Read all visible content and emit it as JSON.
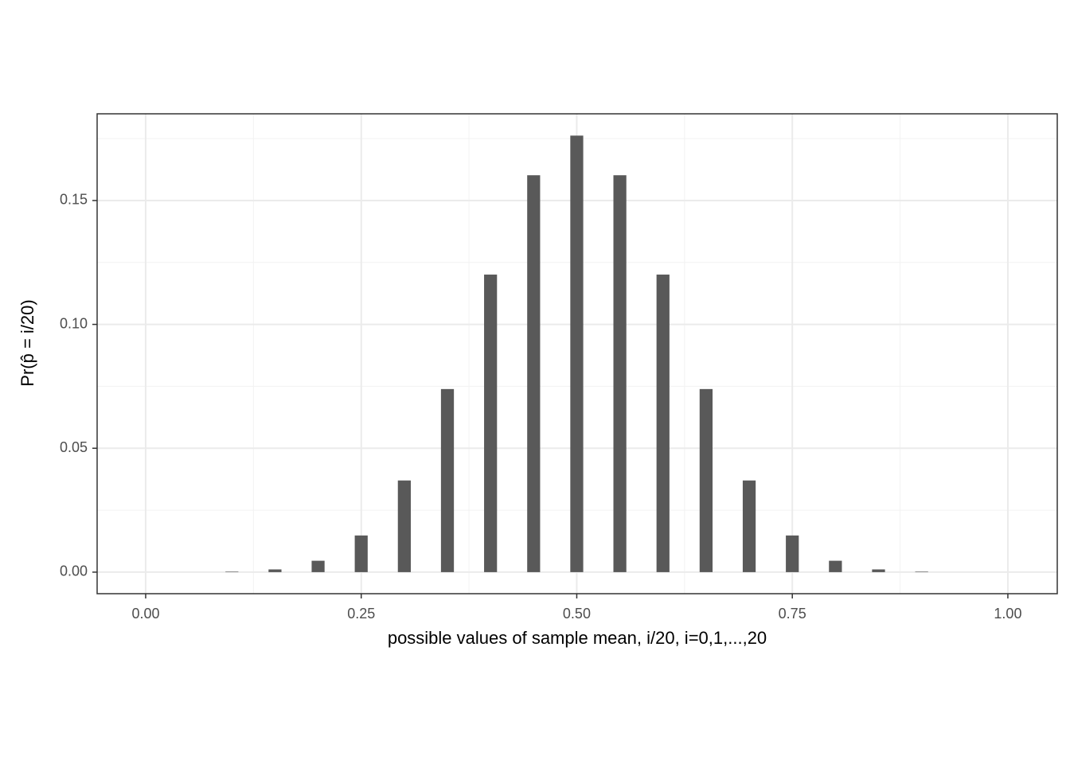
{
  "chart_data": {
    "type": "bar",
    "x_label": "possible values of sample mean, i/20, i=0,1,...,20",
    "y_label": "Pr(p̂ = i/20)",
    "x": [
      0,
      0.05,
      0.1,
      0.15,
      0.2,
      0.25,
      0.3,
      0.35,
      0.4,
      0.45,
      0.5,
      0.55,
      0.6,
      0.65,
      0.7,
      0.75,
      0.8,
      0.85,
      0.9,
      0.95,
      1
    ],
    "values": [
      0,
      0,
      0.0002,
      0.0011,
      0.0046,
      0.0148,
      0.037,
      0.0739,
      0.1201,
      0.1602,
      0.1762,
      0.1602,
      0.1201,
      0.0739,
      0.037,
      0.0148,
      0.0046,
      0.0011,
      0.0002,
      0,
      0
    ],
    "color": "#595959",
    "xlim": [
      -0.0563,
      1.0573
    ],
    "ylim": [
      -0.0087,
      0.185
    ],
    "xticks": [
      {
        "value": 0,
        "label": "0.00"
      },
      {
        "value": 0.25,
        "label": "0.25"
      },
      {
        "value": 0.5,
        "label": "0.50"
      },
      {
        "value": 0.75,
        "label": "0.75"
      },
      {
        "value": 1,
        "label": "1.00"
      }
    ],
    "yticks": [
      {
        "value": 0,
        "label": "0.00"
      },
      {
        "value": 0.05,
        "label": "0.05"
      },
      {
        "value": 0.1,
        "label": "0.10"
      },
      {
        "value": 0.15,
        "label": "0.15"
      }
    ],
    "x_minor_ticks": [
      0.125,
      0.375,
      0.625,
      0.875
    ],
    "y_minor_ticks": [
      0.025,
      0.075,
      0.125,
      0.175
    ],
    "grid": true
  }
}
